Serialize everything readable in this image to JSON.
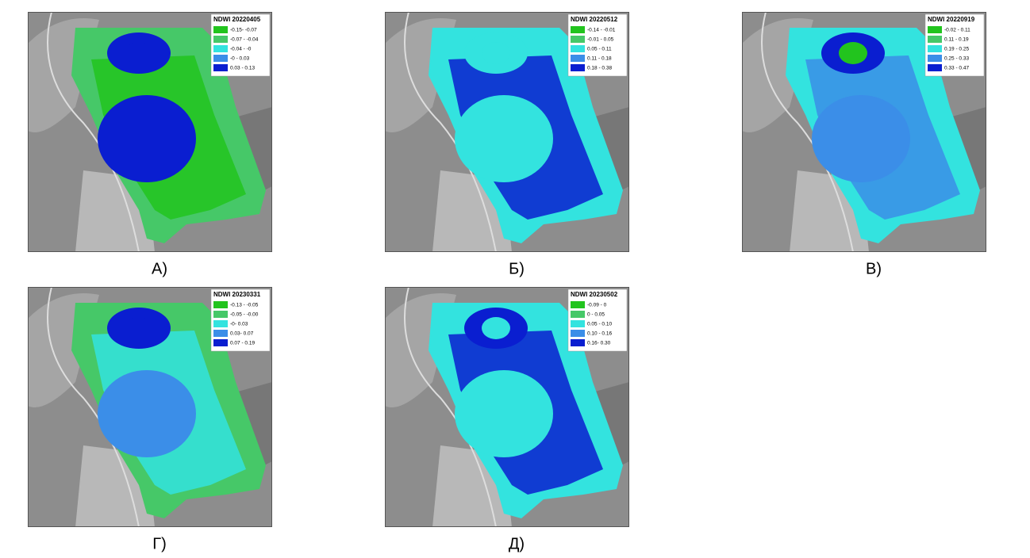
{
  "panels": [
    {
      "caption": "А)",
      "legend": {
        "title": "NDWI 20220405",
        "items": [
          {
            "label": "-0.15- -0.07",
            "color": "#22c41e"
          },
          {
            "label": "-0.07 - -0.04",
            "color": "#46c868"
          },
          {
            "label": "-0.04 - -0",
            "color": "#33e3df"
          },
          {
            "label": "-0 - 0.03",
            "color": "#3b8ee8"
          },
          {
            "label": "0.03 - 0.13",
            "color": "#0a1ed0"
          }
        ]
      }
    },
    {
      "caption": "Б)",
      "legend": {
        "title": "NDWI 20220512",
        "items": [
          {
            "label": "-0.14 - -0.01",
            "color": "#22c41e"
          },
          {
            "label": "-0.01 - 0.05",
            "color": "#46c868"
          },
          {
            "label": "0.05 - 0.11",
            "color": "#33e3df"
          },
          {
            "label": "0.11 - 0.18",
            "color": "#3b8ee8"
          },
          {
            "label": "0.18 - 0.38",
            "color": "#0a1ed0"
          }
        ]
      }
    },
    {
      "caption": "В)",
      "legend": {
        "title": "NDWI 20220919",
        "items": [
          {
            "label": "-0.02 - 0.11",
            "color": "#22c41e"
          },
          {
            "label": "0.11 - 0.19",
            "color": "#46c868"
          },
          {
            "label": "0.19 - 0.25",
            "color": "#33e3df"
          },
          {
            "label": "0.25 - 0.33",
            "color": "#3b8ee8"
          },
          {
            "label": "0.33 - 0.47",
            "color": "#0a1ed0"
          }
        ]
      }
    },
    {
      "caption": "Г)",
      "legend": {
        "title": "NDWI 20230331",
        "items": [
          {
            "label": "-0.13 - -0.05",
            "color": "#22c41e"
          },
          {
            "label": "-0.05 - -0.00",
            "color": "#46c868"
          },
          {
            "label": "-0- 0.03",
            "color": "#33e3df"
          },
          {
            "label": "0.03- 0.07",
            "color": "#3b8ee8"
          },
          {
            "label": "0.07 - 0.19",
            "color": "#0a1ed0"
          }
        ]
      }
    },
    {
      "caption": "Д)",
      "legend": {
        "title": "NDWI 20230502",
        "items": [
          {
            "label": "-0.09 - 0",
            "color": "#22c41e"
          },
          {
            "label": "0 - 0.05",
            "color": "#46c868"
          },
          {
            "label": "0.05 - 0.10",
            "color": "#33e3df"
          },
          {
            "label": "0.10 - 0.16",
            "color": "#3b8ee8"
          },
          {
            "label": "0.16- 0.30",
            "color": "#0a1ed0"
          }
        ]
      }
    }
  ]
}
